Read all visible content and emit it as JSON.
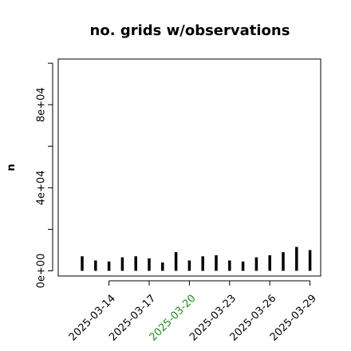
{
  "chart_data": {
    "type": "bar",
    "title": "no. grids w/observations",
    "xlabel": "",
    "ylabel": "n",
    "ylim": [
      -2500,
      102000
    ],
    "yticks": [
      {
        "value": 0,
        "label": "0e+00"
      },
      {
        "value": 40000,
        "label": "4e+04"
      },
      {
        "value": 80000,
        "label": "8e+04"
      }
    ],
    "x": [
      "2025-03-12",
      "2025-03-13",
      "2025-03-14",
      "2025-03-15",
      "2025-03-16",
      "2025-03-17",
      "2025-03-18",
      "2025-03-19",
      "2025-03-20",
      "2025-03-21",
      "2025-03-22",
      "2025-03-23",
      "2025-03-24",
      "2025-03-25",
      "2025-03-26",
      "2025-03-27",
      "2025-03-28",
      "2025-03-29"
    ],
    "values": [
      7000,
      5000,
      4500,
      6500,
      7000,
      6000,
      4000,
      9000,
      5000,
      7000,
      7500,
      5000,
      4500,
      6500,
      7500,
      9000,
      11500,
      10000
    ],
    "xticks": [
      {
        "value": "2025-03-14",
        "label": "2025-03-14",
        "color": "#000000"
      },
      {
        "value": "2025-03-17",
        "label": "2025-03-17",
        "color": "#000000"
      },
      {
        "value": "2025-03-20",
        "label": "2025-03-20",
        "color": "#228B22"
      },
      {
        "value": "2025-03-23",
        "label": "2025-03-23",
        "color": "#000000"
      },
      {
        "value": "2025-03-26",
        "label": "2025-03-26",
        "color": "#000000"
      },
      {
        "value": "2025-03-29",
        "label": "2025-03-29",
        "color": "#000000"
      }
    ],
    "grid": false,
    "bar_color": "#000000"
  }
}
